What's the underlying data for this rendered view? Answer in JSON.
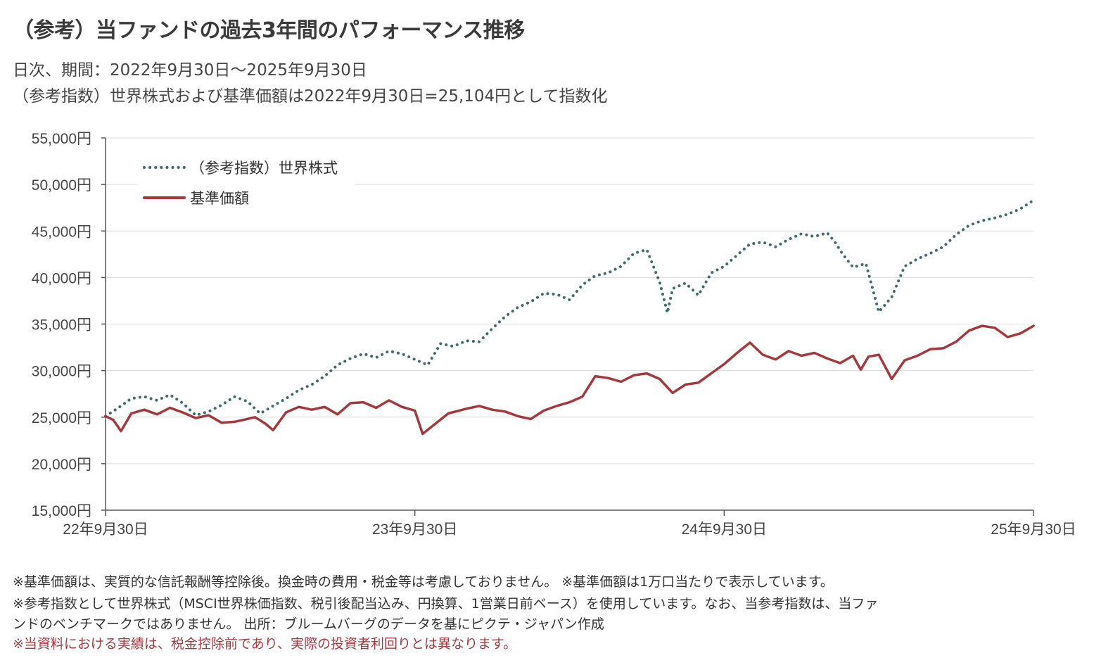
{
  "header": {
    "title": "（参考）当ファンドの過去3年間のパフォーマンス推移",
    "subtitle_period": "日次、期間：2022年9月30日～2025年9月30日",
    "subtitle_index": "（参考指数）世界株式および基準価額は2022年9月30日=25,104円として指数化"
  },
  "notes": {
    "line1": "※基準価額は、実質的な信託報酬等控除後。換金時の費用・税金等は考慮しておりません。 ※基準価額は1万口当たりで表示しています。",
    "line2": "※参考指数として世界株式（MSCI世界株価指数、税引後配当込み、円換算、1営業日前ベース）を使用しています。なお、当参考指数は、当ファ",
    "line3": "ンドのベンチマークではありません。 出所：ブルームバーグのデータを基にピクテ・ジャパン作成",
    "line4": "※当資料における実績は、税金控除前であり、実際の投資者利回りとは異なります。"
  },
  "chart_data": {
    "type": "line",
    "xlabel": "",
    "ylabel": "",
    "ylim": [
      15000,
      55000
    ],
    "y_ticks": [
      15000,
      20000,
      25000,
      30000,
      35000,
      40000,
      45000,
      50000,
      55000
    ],
    "y_tick_labels": [
      "15,000円",
      "20,000円",
      "25,000円",
      "30,000円",
      "35,000円",
      "40,000円",
      "45,000円",
      "50,000円",
      "55,000円"
    ],
    "xlim": [
      0,
      36
    ],
    "x_ticks": [
      0,
      12,
      24,
      36
    ],
    "x_tick_labels": [
      "22年9月30日",
      "23年9月30日",
      "24年9月30日",
      "25年9月30日"
    ],
    "grid": "horizontal",
    "legend_position": "top-left",
    "x_unit_note": "x values are months since 2022-09-30",
    "series": [
      {
        "name": "（参考指数）世界株式",
        "color": "#3e6b6b",
        "style": "dotted",
        "x": [
          0,
          0.5,
          1,
          1.5,
          2,
          2.5,
          3,
          3.5,
          4,
          4.5,
          5,
          5.5,
          6,
          6.5,
          7,
          7.5,
          8,
          8.5,
          9,
          9.5,
          10,
          10.5,
          11,
          11.5,
          12,
          12.5,
          13,
          13.5,
          14,
          14.5,
          15,
          15.5,
          16,
          16.5,
          17,
          17.5,
          18,
          18.5,
          19,
          19.5,
          20,
          20.5,
          21,
          21.5,
          21.8,
          22,
          22.5,
          23,
          23.5,
          24,
          24.5,
          25,
          25.5,
          26,
          26.5,
          27,
          27.5,
          28,
          28.3,
          28.6,
          29,
          29.5,
          30,
          30.5,
          31,
          31.5,
          32,
          32.5,
          33,
          33.5,
          34,
          34.5,
          35,
          35.5,
          36
        ],
        "values": [
          25104,
          26000,
          27000,
          27200,
          26800,
          27400,
          26500,
          25200,
          25600,
          26300,
          27200,
          26700,
          25400,
          26200,
          27000,
          27900,
          28500,
          29400,
          30600,
          31300,
          31800,
          31400,
          32100,
          31800,
          31200,
          30600,
          32900,
          32600,
          33200,
          33100,
          34500,
          35800,
          36800,
          37400,
          38300,
          38200,
          37600,
          39200,
          40200,
          40500,
          41200,
          42600,
          43000,
          39500,
          36200,
          38800,
          39400,
          38100,
          40500,
          41200,
          42400,
          43600,
          43800,
          43300,
          44100,
          44700,
          44400,
          44800,
          43800,
          42500,
          41100,
          41500,
          36300,
          37900,
          41200,
          42000,
          42600,
          43300,
          44600,
          45600,
          46100,
          46400,
          46800,
          47400,
          48300
        ]
      },
      {
        "name": "基準価額",
        "color": "#a3383d",
        "style": "solid",
        "x": [
          0,
          0.3,
          0.6,
          1,
          1.5,
          2,
          2.5,
          3,
          3.5,
          4,
          4.5,
          5,
          5.5,
          5.8,
          6.2,
          6.5,
          7,
          7.5,
          8,
          8.5,
          9,
          9.5,
          10,
          10.5,
          11,
          11.5,
          12,
          12.3,
          12.8,
          13.3,
          14,
          14.5,
          15,
          15.5,
          16,
          16.5,
          17,
          17.5,
          18,
          18.5,
          19,
          19.5,
          20,
          20.5,
          21,
          21.5,
          22,
          22.5,
          23,
          23.5,
          24,
          24.5,
          25,
          25.5,
          26,
          26.5,
          27,
          27.5,
          28,
          28.5,
          29,
          29.3,
          29.6,
          30,
          30.5,
          31,
          31.5,
          32,
          32.5,
          33,
          33.5,
          34,
          34.5,
          35,
          35.5,
          36
        ],
        "values": [
          25104,
          24700,
          23500,
          25400,
          25800,
          25300,
          26000,
          25500,
          24900,
          25200,
          24400,
          24500,
          24800,
          25000,
          24300,
          23600,
          25500,
          26100,
          25800,
          26100,
          25300,
          26500,
          26600,
          26000,
          26800,
          26100,
          25700,
          23200,
          24300,
          25400,
          25900,
          26200,
          25800,
          25600,
          25100,
          24800,
          25700,
          26200,
          26600,
          27200,
          29400,
          29200,
          28800,
          29500,
          29700,
          29100,
          27600,
          28500,
          28700,
          29700,
          30700,
          31900,
          33000,
          31700,
          31200,
          32100,
          31600,
          31900,
          31300,
          30800,
          31600,
          30100,
          31500,
          31700,
          29100,
          31100,
          31600,
          32300,
          32400,
          33100,
          34300,
          34800,
          34600,
          33600,
          34000,
          34800
        ]
      }
    ]
  }
}
